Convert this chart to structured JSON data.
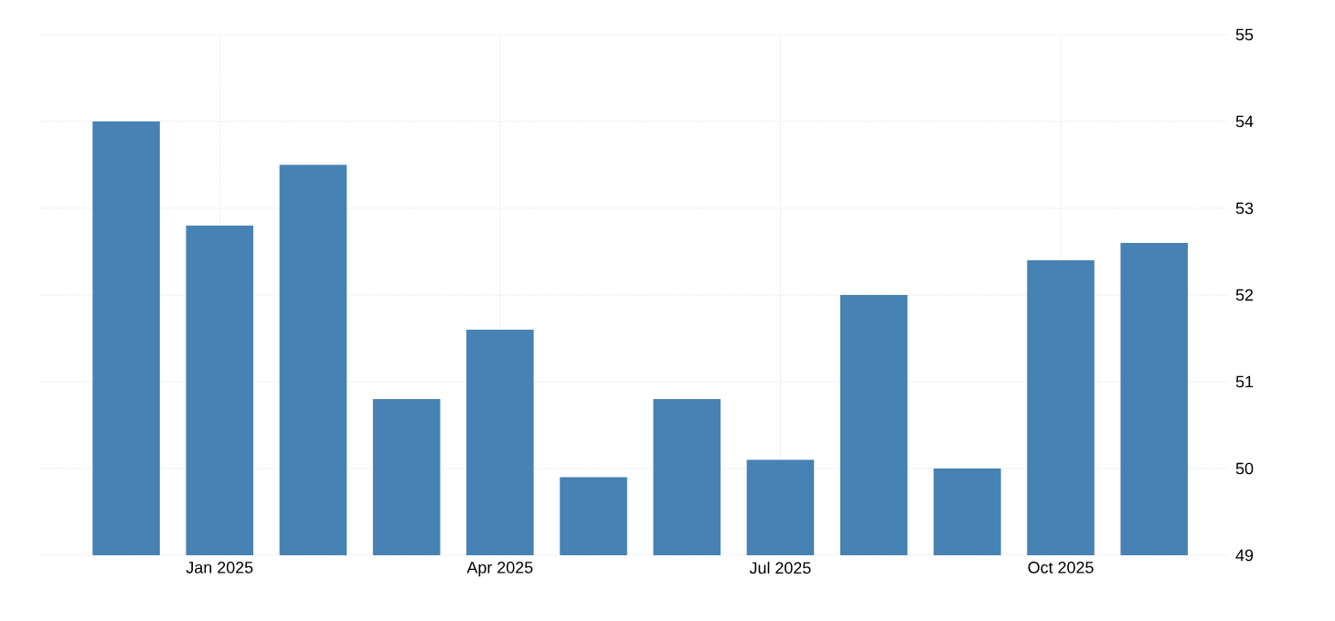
{
  "chart_data": {
    "type": "bar",
    "categories": [
      null,
      "Jan 2025",
      null,
      null,
      "Apr 2025",
      null,
      null,
      "Jul 2025",
      null,
      null,
      "Oct 2025",
      null
    ],
    "values": [
      54.0,
      52.8,
      53.5,
      50.8,
      51.6,
      49.9,
      50.8,
      50.1,
      52.0,
      50.0,
      52.4,
      52.6
    ],
    "color": "#4682b4",
    "ylim": [
      49,
      55
    ],
    "yticks": [
      49,
      50,
      51,
      52,
      53,
      54,
      55
    ],
    "grid": true
  }
}
